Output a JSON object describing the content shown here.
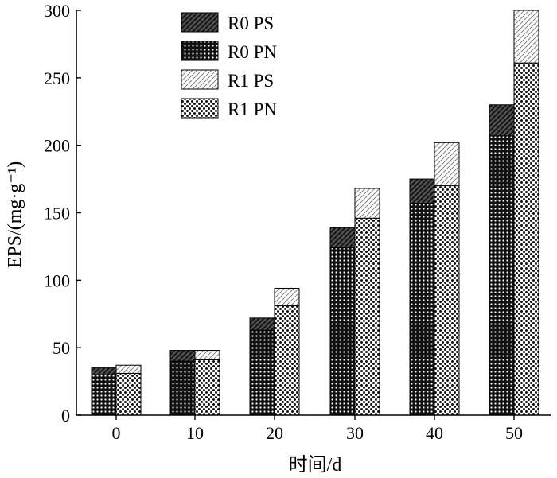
{
  "chart_data": {
    "type": "bar",
    "subtype": "grouped-stacked",
    "xlabel": "时间/d",
    "ylabel": "EPS/(mg·g⁻¹)",
    "categories": [
      "0",
      "10",
      "20",
      "30",
      "40",
      "50"
    ],
    "ylim": [
      0,
      300
    ],
    "yticks": [
      "0",
      "50",
      "100",
      "150",
      "200",
      "250",
      "300"
    ],
    "grid": false,
    "legend_position": "top-left",
    "groups": [
      {
        "name": "R0",
        "series": [
          {
            "name": "R0 PN",
            "pattern": "dots-dark",
            "values": [
              30,
              40,
              63,
              124,
              157,
              207
            ]
          },
          {
            "name": "R0 PS",
            "pattern": "hatch-dark",
            "values": [
              5,
              8,
              9,
              15,
              18,
              23
            ]
          }
        ]
      },
      {
        "name": "R1",
        "series": [
          {
            "name": "R1 PN",
            "pattern": "dots-light",
            "values": [
              31,
              41,
              81,
              146,
              170,
              261
            ]
          },
          {
            "name": "R1 PS",
            "pattern": "hatch-light",
            "values": [
              6,
              7,
              13,
              22,
              32,
              39
            ]
          }
        ]
      }
    ],
    "legend": [
      "R0 PS",
      "R0 PN",
      "R1 PS",
      "R1 PN"
    ]
  }
}
